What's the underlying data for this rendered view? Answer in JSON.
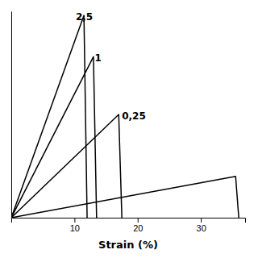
{
  "chart_data": {
    "type": "line",
    "xlabel": "Strain (%)",
    "color": "#000000",
    "xlim": [
      0,
      37
    ],
    "ylim": [
      0,
      1.0
    ],
    "xticks": [
      10,
      20,
      30
    ],
    "tick_labels": "x",
    "series": [
      {
        "x": [
          0,
          11.5,
          12.0
        ],
        "values": [
          0,
          0.98,
          0.0
        ]
      },
      {
        "x": [
          0,
          13.0,
          13.5
        ],
        "values": [
          0,
          0.78,
          0.0
        ]
      },
      {
        "x": [
          0,
          17.0,
          17.5
        ],
        "values": [
          0,
          0.5,
          0.0
        ]
      },
      {
        "x": [
          0,
          35.5,
          36.0
        ],
        "values": [
          0,
          0.2,
          0.0
        ]
      }
    ],
    "annotations": [
      {
        "text": "2,5",
        "x": 10.2,
        "y": 1.0
      },
      {
        "text": "1",
        "x": 13.2,
        "y": 0.8
      },
      {
        "text": "0,25",
        "x": 17.5,
        "y": 0.52
      }
    ]
  }
}
